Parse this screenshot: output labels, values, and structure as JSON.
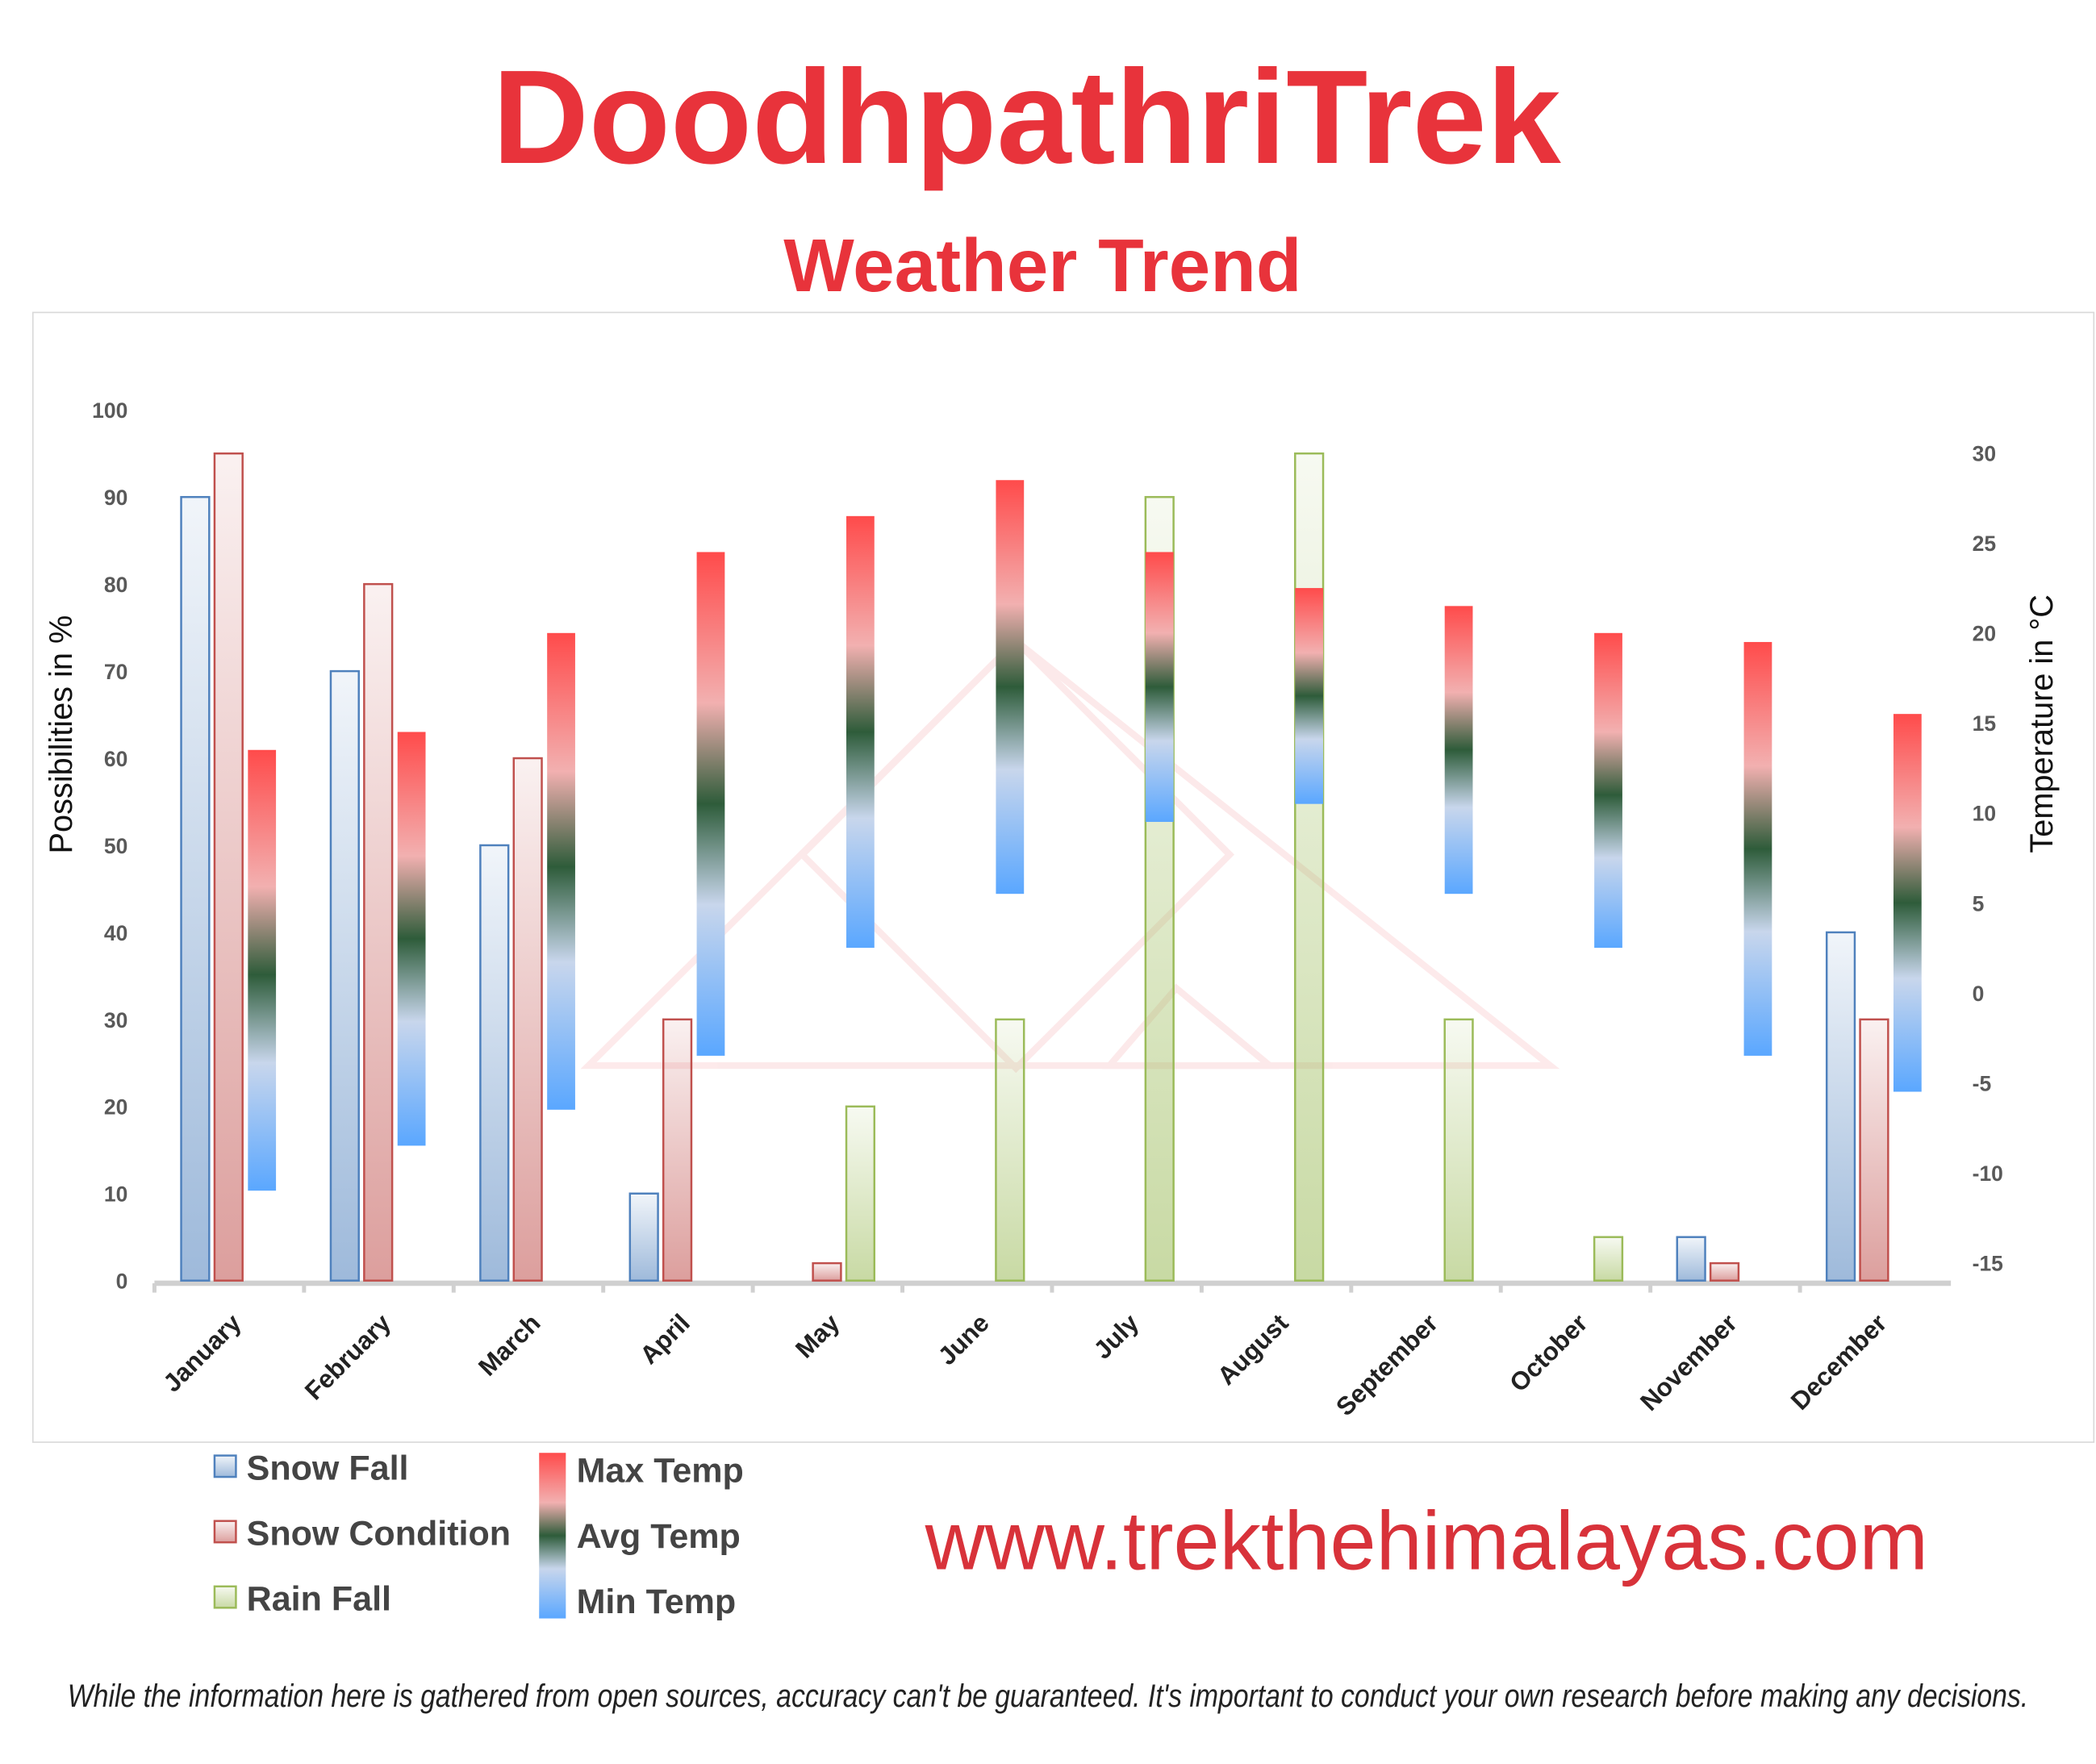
{
  "chart_data": {
    "type": "bar",
    "title": "DoodhpathriTrek",
    "subtitle": "Weather Trend",
    "y_label": "Possibilities in %",
    "y2_label": "Temperature in °C",
    "categories": [
      "January",
      "February",
      "March",
      "April",
      "May",
      "June",
      "July",
      "August",
      "September",
      "October",
      "November",
      "December"
    ],
    "series": [
      {
        "name": "Snow Fall",
        "color": "#4f81bd",
        "values": [
          90,
          70,
          50,
          10,
          0,
          0,
          0,
          0,
          0,
          0,
          5,
          40
        ]
      },
      {
        "name": "Snow Condition",
        "color": "#c0504d",
        "values": [
          95,
          80,
          60,
          30,
          2,
          0,
          0,
          0,
          0,
          0,
          2,
          30
        ]
      },
      {
        "name": "Rain Fall",
        "color": "#9bbb59",
        "values": [
          0,
          0,
          0,
          0,
          20,
          30,
          90,
          95,
          30,
          5,
          0,
          0
        ]
      },
      {
        "name": "Max Temp",
        "color": "#ff4b4b",
        "axis": "y2",
        "values": [
          13.5,
          14.5,
          20,
          24.5,
          26.5,
          28.5,
          24.5,
          22.5,
          21.5,
          20,
          19.5,
          15.5
        ]
      },
      {
        "name": "Avg Temp",
        "color": "#2e5c3a",
        "axis": "y2",
        "values": [
          1,
          3,
          7,
          10.5,
          14.5,
          17,
          17,
          16.5,
          13.5,
          11,
          8,
          5
        ]
      },
      {
        "name": "Min Temp",
        "color": "#5aa7ff",
        "axis": "y2",
        "values": [
          -11,
          -8.5,
          -6.5,
          -3.5,
          2.5,
          5.5,
          9.5,
          10.5,
          5.5,
          2.5,
          -3.5,
          -5.5
        ]
      }
    ],
    "ylim": [
      0,
      100
    ],
    "yticks": [
      0,
      10,
      20,
      30,
      40,
      50,
      60,
      70,
      80,
      90,
      100
    ],
    "y2lim": [
      -16,
      32.4
    ],
    "y2ticks": [
      -15,
      -10,
      -5,
      0,
      5,
      10,
      15,
      20,
      25,
      30
    ]
  },
  "website": "www.trekthehimalayas.com",
  "disclaimer": "While the information here is gathered from open sources, accuracy can't be guaranteed. It's important to conduct your own research before making any decisions."
}
